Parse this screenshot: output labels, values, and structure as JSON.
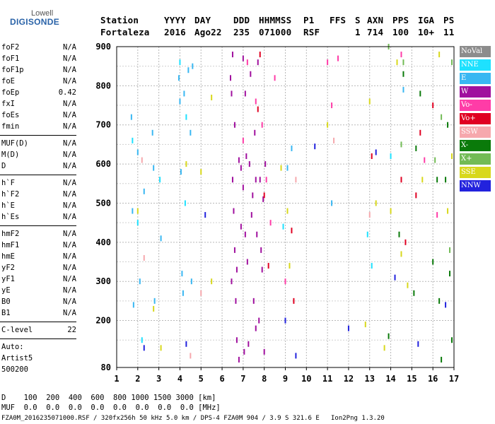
{
  "logo": {
    "line1": "Lowell",
    "line2": "DIGISONDE"
  },
  "header": {
    "labels": [
      "Station",
      "YYYY",
      "DAY",
      "DDD",
      "HHMMSS",
      "P1",
      "FFS",
      "S",
      "AXN",
      "PPS",
      "IGA",
      "PS"
    ],
    "values": [
      "Fortaleza",
      "2016",
      "Ago22",
      "235",
      "071000",
      "RSF",
      "1",
      "714",
      "100",
      "10+",
      "11"
    ]
  },
  "params": [
    {
      "group": 1,
      "label": "foF2",
      "value": "N/A"
    },
    {
      "group": 1,
      "label": "foF1",
      "value": "N/A"
    },
    {
      "group": 1,
      "label": "foF1p",
      "value": "N/A"
    },
    {
      "group": 1,
      "label": "foE",
      "value": "N/A"
    },
    {
      "group": 1,
      "label": "foEp",
      "value": "0.42"
    },
    {
      "group": 1,
      "label": "fxI",
      "value": "N/A"
    },
    {
      "group": 1,
      "label": "foEs",
      "value": "N/A"
    },
    {
      "group": 1,
      "label": "fmin",
      "value": "N/A"
    },
    {
      "group": 2,
      "label": "MUF(D)",
      "value": "N/A"
    },
    {
      "group": 2,
      "label": "M(D)",
      "value": "N/A"
    },
    {
      "group": 2,
      "label": "D",
      "value": "N/A"
    },
    {
      "group": 3,
      "label": "h`F",
      "value": "N/A"
    },
    {
      "group": 3,
      "label": "h`F2",
      "value": "N/A"
    },
    {
      "group": 3,
      "label": "h`E",
      "value": "N/A"
    },
    {
      "group": 3,
      "label": "h`Es",
      "value": "N/A"
    },
    {
      "group": 4,
      "label": "hmF2",
      "value": "N/A"
    },
    {
      "group": 4,
      "label": "hmF1",
      "value": "N/A"
    },
    {
      "group": 4,
      "label": "hmE",
      "value": "N/A"
    },
    {
      "group": 4,
      "label": "yF2",
      "value": "N/A"
    },
    {
      "group": 4,
      "label": "yF1",
      "value": "N/A"
    },
    {
      "group": 4,
      "label": "yE",
      "value": "N/A"
    },
    {
      "group": 4,
      "label": "B0",
      "value": "N/A"
    },
    {
      "group": 4,
      "label": "B1",
      "value": "N/A"
    },
    {
      "group": 5,
      "label": "C-level",
      "value": "22"
    }
  ],
  "autoscaling": {
    "line1": "Auto:",
    "line2": "Artist5",
    "line3": "500200"
  },
  "legend": [
    {
      "label": "NoVal",
      "color": "#8c8c8c"
    },
    {
      "label": "NNE",
      "color": "#1ee1ff"
    },
    {
      "label": "E",
      "color": "#39b7f2"
    },
    {
      "label": "W",
      "color": "#a0109e"
    },
    {
      "label": "Vo-",
      "color": "#ff3ca7"
    },
    {
      "label": "Vo+",
      "color": "#e00022"
    },
    {
      "label": "SSW",
      "color": "#f6a8ad"
    },
    {
      "label": "X-",
      "color": "#0a7a0a"
    },
    {
      "label": "X+",
      "color": "#72bb55"
    },
    {
      "label": "SSE",
      "color": "#d8d81c"
    },
    {
      "label": "NNW",
      "color": "#2222dd"
    }
  ],
  "muf_table": {
    "row1": "D    100  200  400  600  800 1000 1500 3000 [km]",
    "row2": "MUF  0.0  0.0  0.0  0.0  0.0  0.0  0.0  0.0 [MHz]"
  },
  "footer": "FZA0M_2016235071000.RSF / 320fx256h 50 kHz 5.0 km / DPS-4 FZA0M 904 / 3.9 S 321.6 E   Ion2Png 1.3.20",
  "chart_data": {
    "type": "scatter",
    "title": "",
    "xlabel": "",
    "ylabel": "",
    "xlim": [
      1,
      17
    ],
    "ylim": [
      80,
      900
    ],
    "xticks": [
      1,
      2,
      3,
      4,
      5,
      6,
      7,
      8,
      9,
      10,
      11,
      12,
      13,
      14,
      15,
      16,
      17
    ],
    "yticks": [
      200,
      300,
      400,
      500,
      600,
      700,
      800,
      900
    ],
    "yticks_minor": [
      80
    ],
    "grid": true,
    "legend_position": "right",
    "series": [
      {
        "name": "W",
        "color": "#a0109e",
        "points": [
          [
            6.4,
            820
          ],
          [
            6.45,
            780
          ],
          [
            6.5,
            560
          ],
          [
            6.55,
            480
          ],
          [
            6.6,
            380
          ],
          [
            6.65,
            250
          ],
          [
            6.7,
            150
          ],
          [
            6.8,
            610
          ],
          [
            6.9,
            590
          ],
          [
            7.0,
            540
          ],
          [
            7.05,
            120
          ],
          [
            7.1,
            420
          ],
          [
            7.2,
            350
          ],
          [
            7.3,
            600
          ],
          [
            7.4,
            470
          ],
          [
            7.5,
            250
          ],
          [
            7.6,
            180
          ],
          [
            7.7,
            860
          ],
          [
            7.8,
            560
          ],
          [
            7.85,
            380
          ],
          [
            7.9,
            330
          ],
          [
            8.0,
            120
          ],
          [
            6.5,
            880
          ],
          [
            6.6,
            700
          ],
          [
            6.7,
            330
          ],
          [
            6.8,
            100
          ],
          [
            6.9,
            440
          ],
          [
            7.0,
            870
          ],
          [
            7.15,
            620
          ],
          [
            7.25,
            140
          ],
          [
            7.35,
            830
          ],
          [
            7.45,
            520
          ],
          [
            7.55,
            680
          ],
          [
            7.65,
            420
          ],
          [
            7.75,
            200
          ],
          [
            7.95,
            510
          ],
          [
            8.05,
            600
          ],
          [
            6.45,
            300
          ],
          [
            7.1,
            780
          ],
          [
            7.6,
            560
          ]
        ]
      },
      {
        "name": "E",
        "color": "#39b7f2",
        "points": [
          [
            1.7,
            720
          ],
          [
            1.75,
            480
          ],
          [
            1.8,
            240
          ],
          [
            2.0,
            630
          ],
          [
            2.1,
            300
          ],
          [
            2.3,
            530
          ],
          [
            2.7,
            680
          ],
          [
            2.75,
            590
          ],
          [
            2.8,
            250
          ],
          [
            3.1,
            410
          ],
          [
            3.95,
            820
          ],
          [
            4.0,
            760
          ],
          [
            4.05,
            580
          ],
          [
            4.1,
            320
          ],
          [
            4.15,
            270
          ],
          [
            4.2,
            780
          ],
          [
            4.4,
            840
          ],
          [
            4.5,
            680
          ],
          [
            4.55,
            300
          ],
          [
            4.6,
            850
          ],
          [
            9.1,
            590
          ],
          [
            9.3,
            640
          ],
          [
            11.2,
            500
          ],
          [
            14.6,
            790
          ]
        ]
      },
      {
        "name": "NNE",
        "color": "#1ee1ff",
        "points": [
          [
            1.75,
            660
          ],
          [
            2.0,
            450
          ],
          [
            2.2,
            150
          ],
          [
            3.05,
            560
          ],
          [
            4.0,
            860
          ],
          [
            4.25,
            500
          ],
          [
            4.3,
            720
          ],
          [
            8.9,
            440
          ],
          [
            12.9,
            420
          ],
          [
            13.1,
            340
          ],
          [
            14.0,
            620
          ]
        ]
      },
      {
        "name": "Vo-",
        "color": "#ff3ca7",
        "points": [
          [
            7.0,
            660
          ],
          [
            7.2,
            860
          ],
          [
            7.6,
            760
          ],
          [
            7.9,
            700
          ],
          [
            8.1,
            560
          ],
          [
            8.3,
            450
          ],
          [
            8.5,
            820
          ],
          [
            9.0,
            300
          ],
          [
            11.0,
            860
          ],
          [
            11.2,
            750
          ],
          [
            11.5,
            870
          ],
          [
            14.5,
            880
          ],
          [
            15.6,
            610
          ],
          [
            16.2,
            470
          ]
        ]
      },
      {
        "name": "Vo+",
        "color": "#e00022",
        "points": [
          [
            7.7,
            740
          ],
          [
            7.8,
            880
          ],
          [
            8.0,
            520
          ],
          [
            8.2,
            340
          ],
          [
            9.3,
            430
          ],
          [
            9.4,
            250
          ],
          [
            13.1,
            620
          ],
          [
            14.5,
            560
          ],
          [
            14.7,
            400
          ],
          [
            15.2,
            520
          ],
          [
            15.4,
            680
          ],
          [
            16.0,
            750
          ]
        ]
      },
      {
        "name": "SSW",
        "color": "#f6a8ad",
        "points": [
          [
            2.2,
            610
          ],
          [
            2.3,
            360
          ],
          [
            4.5,
            110
          ],
          [
            5.0,
            270
          ],
          [
            9.5,
            560
          ],
          [
            11.3,
            660
          ],
          [
            13.0,
            470
          ]
        ]
      },
      {
        "name": "X-",
        "color": "#0a7a0a",
        "points": [
          [
            13.9,
            160
          ],
          [
            14.4,
            420
          ],
          [
            14.6,
            830
          ],
          [
            15.2,
            640
          ],
          [
            15.4,
            780
          ],
          [
            16.0,
            350
          ],
          [
            16.2,
            560
          ],
          [
            16.3,
            250
          ],
          [
            16.4,
            100
          ],
          [
            16.6,
            560
          ],
          [
            16.7,
            700
          ],
          [
            16.8,
            320
          ],
          [
            16.9,
            150
          ],
          [
            15.1,
            270
          ]
        ]
      },
      {
        "name": "X+",
        "color": "#72bb55",
        "points": [
          [
            13.9,
            900
          ],
          [
            14.5,
            650
          ],
          [
            14.6,
            860
          ],
          [
            16.1,
            610
          ],
          [
            16.4,
            720
          ],
          [
            16.8,
            380
          ],
          [
            16.9,
            860
          ]
        ]
      },
      {
        "name": "SSE",
        "color": "#d8d81c",
        "points": [
          [
            2.0,
            480
          ],
          [
            2.75,
            230
          ],
          [
            3.1,
            130
          ],
          [
            4.3,
            600
          ],
          [
            5.0,
            580
          ],
          [
            5.5,
            770
          ],
          [
            5.5,
            300
          ],
          [
            8.8,
            590
          ],
          [
            9.1,
            480
          ],
          [
            9.2,
            340
          ],
          [
            11.0,
            700
          ],
          [
            12.8,
            190
          ],
          [
            13.0,
            760
          ],
          [
            13.3,
            500
          ],
          [
            13.7,
            130
          ],
          [
            14.0,
            480
          ],
          [
            14.3,
            860
          ],
          [
            14.5,
            370
          ],
          [
            14.8,
            290
          ],
          [
            15.5,
            560
          ],
          [
            16.3,
            880
          ],
          [
            16.7,
            480
          ],
          [
            16.9,
            620
          ]
        ]
      },
      {
        "name": "NNW",
        "color": "#2222dd",
        "points": [
          [
            2.3,
            130
          ],
          [
            4.3,
            140
          ],
          [
            5.2,
            470
          ],
          [
            9.0,
            200
          ],
          [
            9.5,
            110
          ],
          [
            10.4,
            645
          ],
          [
            12.0,
            180
          ],
          [
            13.3,
            630
          ],
          [
            14.2,
            310
          ],
          [
            15.3,
            140
          ],
          [
            16.6,
            240
          ]
        ]
      }
    ]
  }
}
